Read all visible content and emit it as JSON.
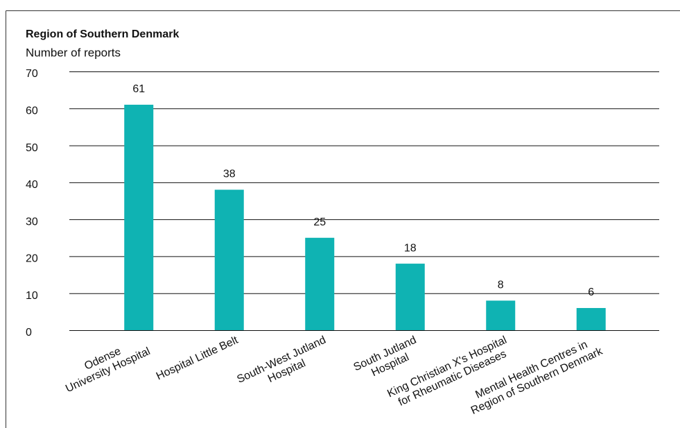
{
  "chart_data": {
    "type": "bar",
    "title": "Region of Southern Denmark",
    "subtitle": "Number of reports",
    "categories": [
      "Odense\nUniversity Hospital",
      "Hospital Little Belt",
      "South-West Jutland\nHospital",
      "South Jutland\nHospital",
      "King Christian X's Hospital\nfor Rheumatic Diseases",
      "Mental Health Centres in\nRegion of Southern Denmark"
    ],
    "values": [
      61,
      38,
      25,
      18,
      8,
      6
    ],
    "color": "#0fb3b3",
    "ylim": [
      0,
      70
    ],
    "yticks": [
      0,
      10,
      20,
      30,
      40,
      50,
      60,
      70
    ],
    "grid": true
  }
}
